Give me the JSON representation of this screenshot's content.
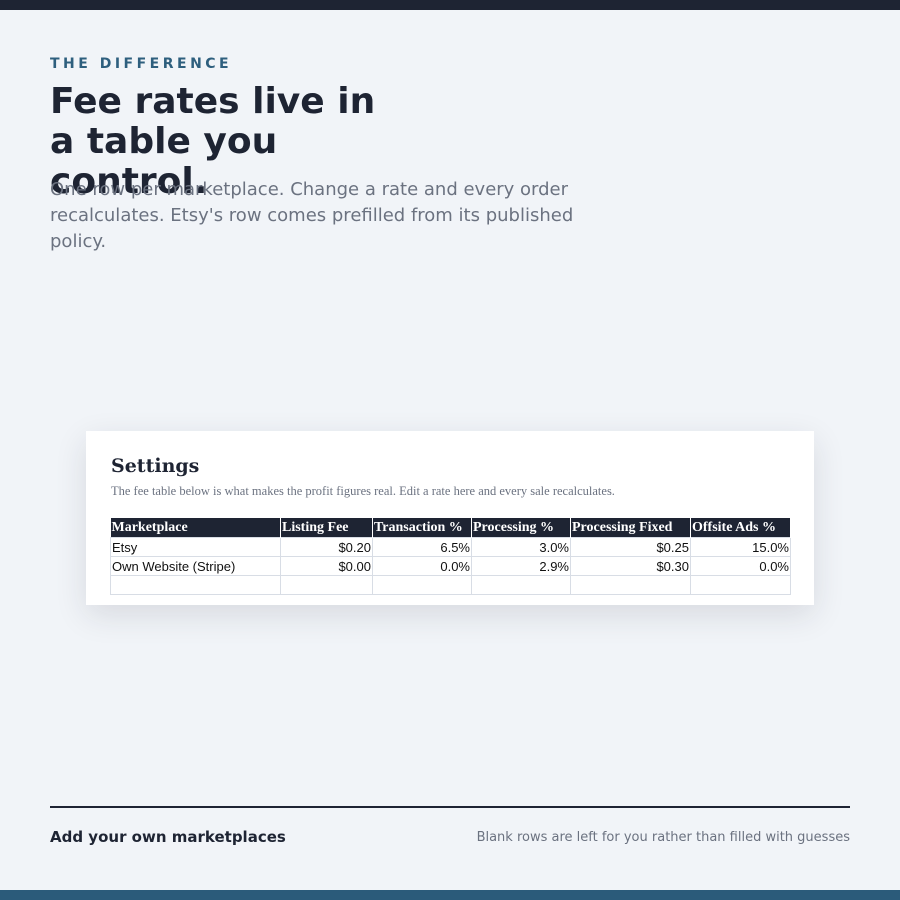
{
  "header": {
    "eyebrow": "THE DIFFERENCE",
    "title": "Fee rates live in a table you control.",
    "subtitle": "One row per marketplace. Change a rate and every order recalculates. Etsy's row comes prefilled from its published policy."
  },
  "card": {
    "title": "Settings",
    "description": "The fee table below is what makes the profit figures real. Edit a rate here and every sale recalculates.",
    "table": {
      "columns": [
        "Marketplace",
        "Listing Fee",
        "Transaction %",
        "Processing %",
        "Processing Fixed",
        "Offsite Ads %"
      ],
      "rows": [
        [
          "Etsy",
          "$0.20",
          "6.5%",
          "3.0%",
          "$0.25",
          "15.0%"
        ],
        [
          "Own Website (Stripe)",
          "$0.00",
          "0.0%",
          "2.9%",
          "$0.30",
          "0.0%"
        ]
      ]
    }
  },
  "footer": {
    "left": "Add your own marketplaces",
    "right": "Blank rows are left for you rather than filled with guesses"
  }
}
